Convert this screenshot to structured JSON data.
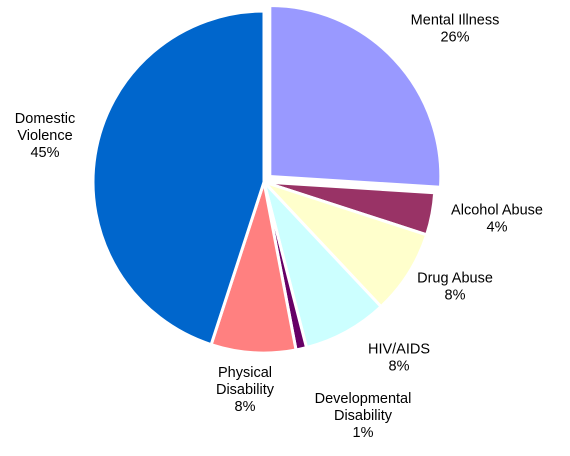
{
  "chart_data": {
    "type": "pie",
    "title": "",
    "slices": [
      {
        "label": [
          "Mental Illness"
        ],
        "percent_label": "26%",
        "value": 26,
        "color": "#9999ff",
        "exploded": true
      },
      {
        "label": [
          "Alcohol Abuse"
        ],
        "percent_label": "4%",
        "value": 4,
        "color": "#993366",
        "exploded": false
      },
      {
        "label": [
          "Drug Abuse"
        ],
        "percent_label": "8%",
        "value": 8,
        "color": "#ffffcc",
        "exploded": false
      },
      {
        "label": [
          "HIV/AIDS"
        ],
        "percent_label": "8%",
        "value": 8,
        "color": "#ccffff",
        "exploded": false
      },
      {
        "label": [
          "Developmental",
          "Disability"
        ],
        "percent_label": "1%",
        "value": 1,
        "color": "#660066",
        "exploded": false
      },
      {
        "label": [
          "Physical",
          "Disability"
        ],
        "percent_label": "8%",
        "value": 8,
        "color": "#ff8080",
        "exploded": false
      },
      {
        "label": [
          "Domestic",
          "Violence"
        ],
        "percent_label": "45%",
        "value": 45,
        "color": "#0066cc",
        "exploded": false
      }
    ],
    "start": "12 o'clock",
    "direction": "clockwise",
    "legend": "none"
  }
}
